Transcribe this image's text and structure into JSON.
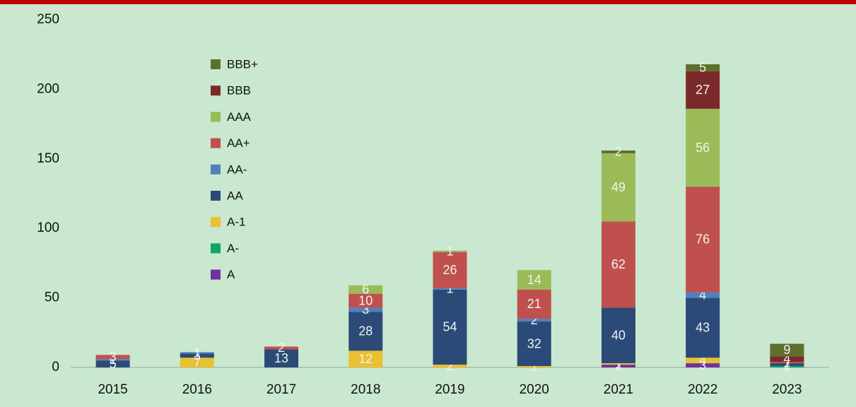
{
  "chart_data": {
    "type": "stacked_bar",
    "categories": [
      "2015",
      "2016",
      "2017",
      "2018",
      "2019",
      "2020",
      "2021",
      "2022",
      "2023"
    ],
    "series": [
      {
        "name": "A",
        "color": "#7030a0",
        "values": [
          0,
          0,
          0,
          0,
          0,
          0,
          2,
          3,
          0
        ]
      },
      {
        "name": "A-",
        "color": "#10a860",
        "values": [
          0,
          0,
          0,
          0,
          0,
          0,
          0,
          0,
          1
        ]
      },
      {
        "name": "A-1",
        "color": "#e8c030",
        "values": [
          0,
          7,
          0,
          12,
          2,
          1,
          1,
          4,
          0
        ]
      },
      {
        "name": "AA",
        "color": "#2b4a78",
        "values": [
          5,
          3,
          13,
          28,
          54,
          32,
          40,
          43,
          2
        ]
      },
      {
        "name": "AA-",
        "color": "#4f81bd",
        "values": [
          1,
          1,
          0,
          3,
          1,
          2,
          0,
          4,
          0
        ]
      },
      {
        "name": "AA+",
        "color": "#c0504d",
        "values": [
          3,
          0,
          2,
          10,
          26,
          21,
          62,
          76,
          1
        ]
      },
      {
        "name": "AAA",
        "color": "#9bbb59",
        "values": [
          0,
          0,
          0,
          6,
          1,
          14,
          49,
          56,
          0
        ]
      },
      {
        "name": "BBB",
        "color": "#7b2a2a",
        "values": [
          0,
          0,
          0,
          0,
          0,
          0,
          0,
          27,
          4
        ]
      },
      {
        "name": "BBB+",
        "color": "#5f6f2c",
        "values": [
          0,
          0,
          0,
          0,
          0,
          0,
          2,
          5,
          9
        ]
      }
    ],
    "ylim": [
      0,
      250
    ],
    "yticks": [
      0,
      50,
      100,
      150,
      200,
      250
    ],
    "grid": false
  }
}
